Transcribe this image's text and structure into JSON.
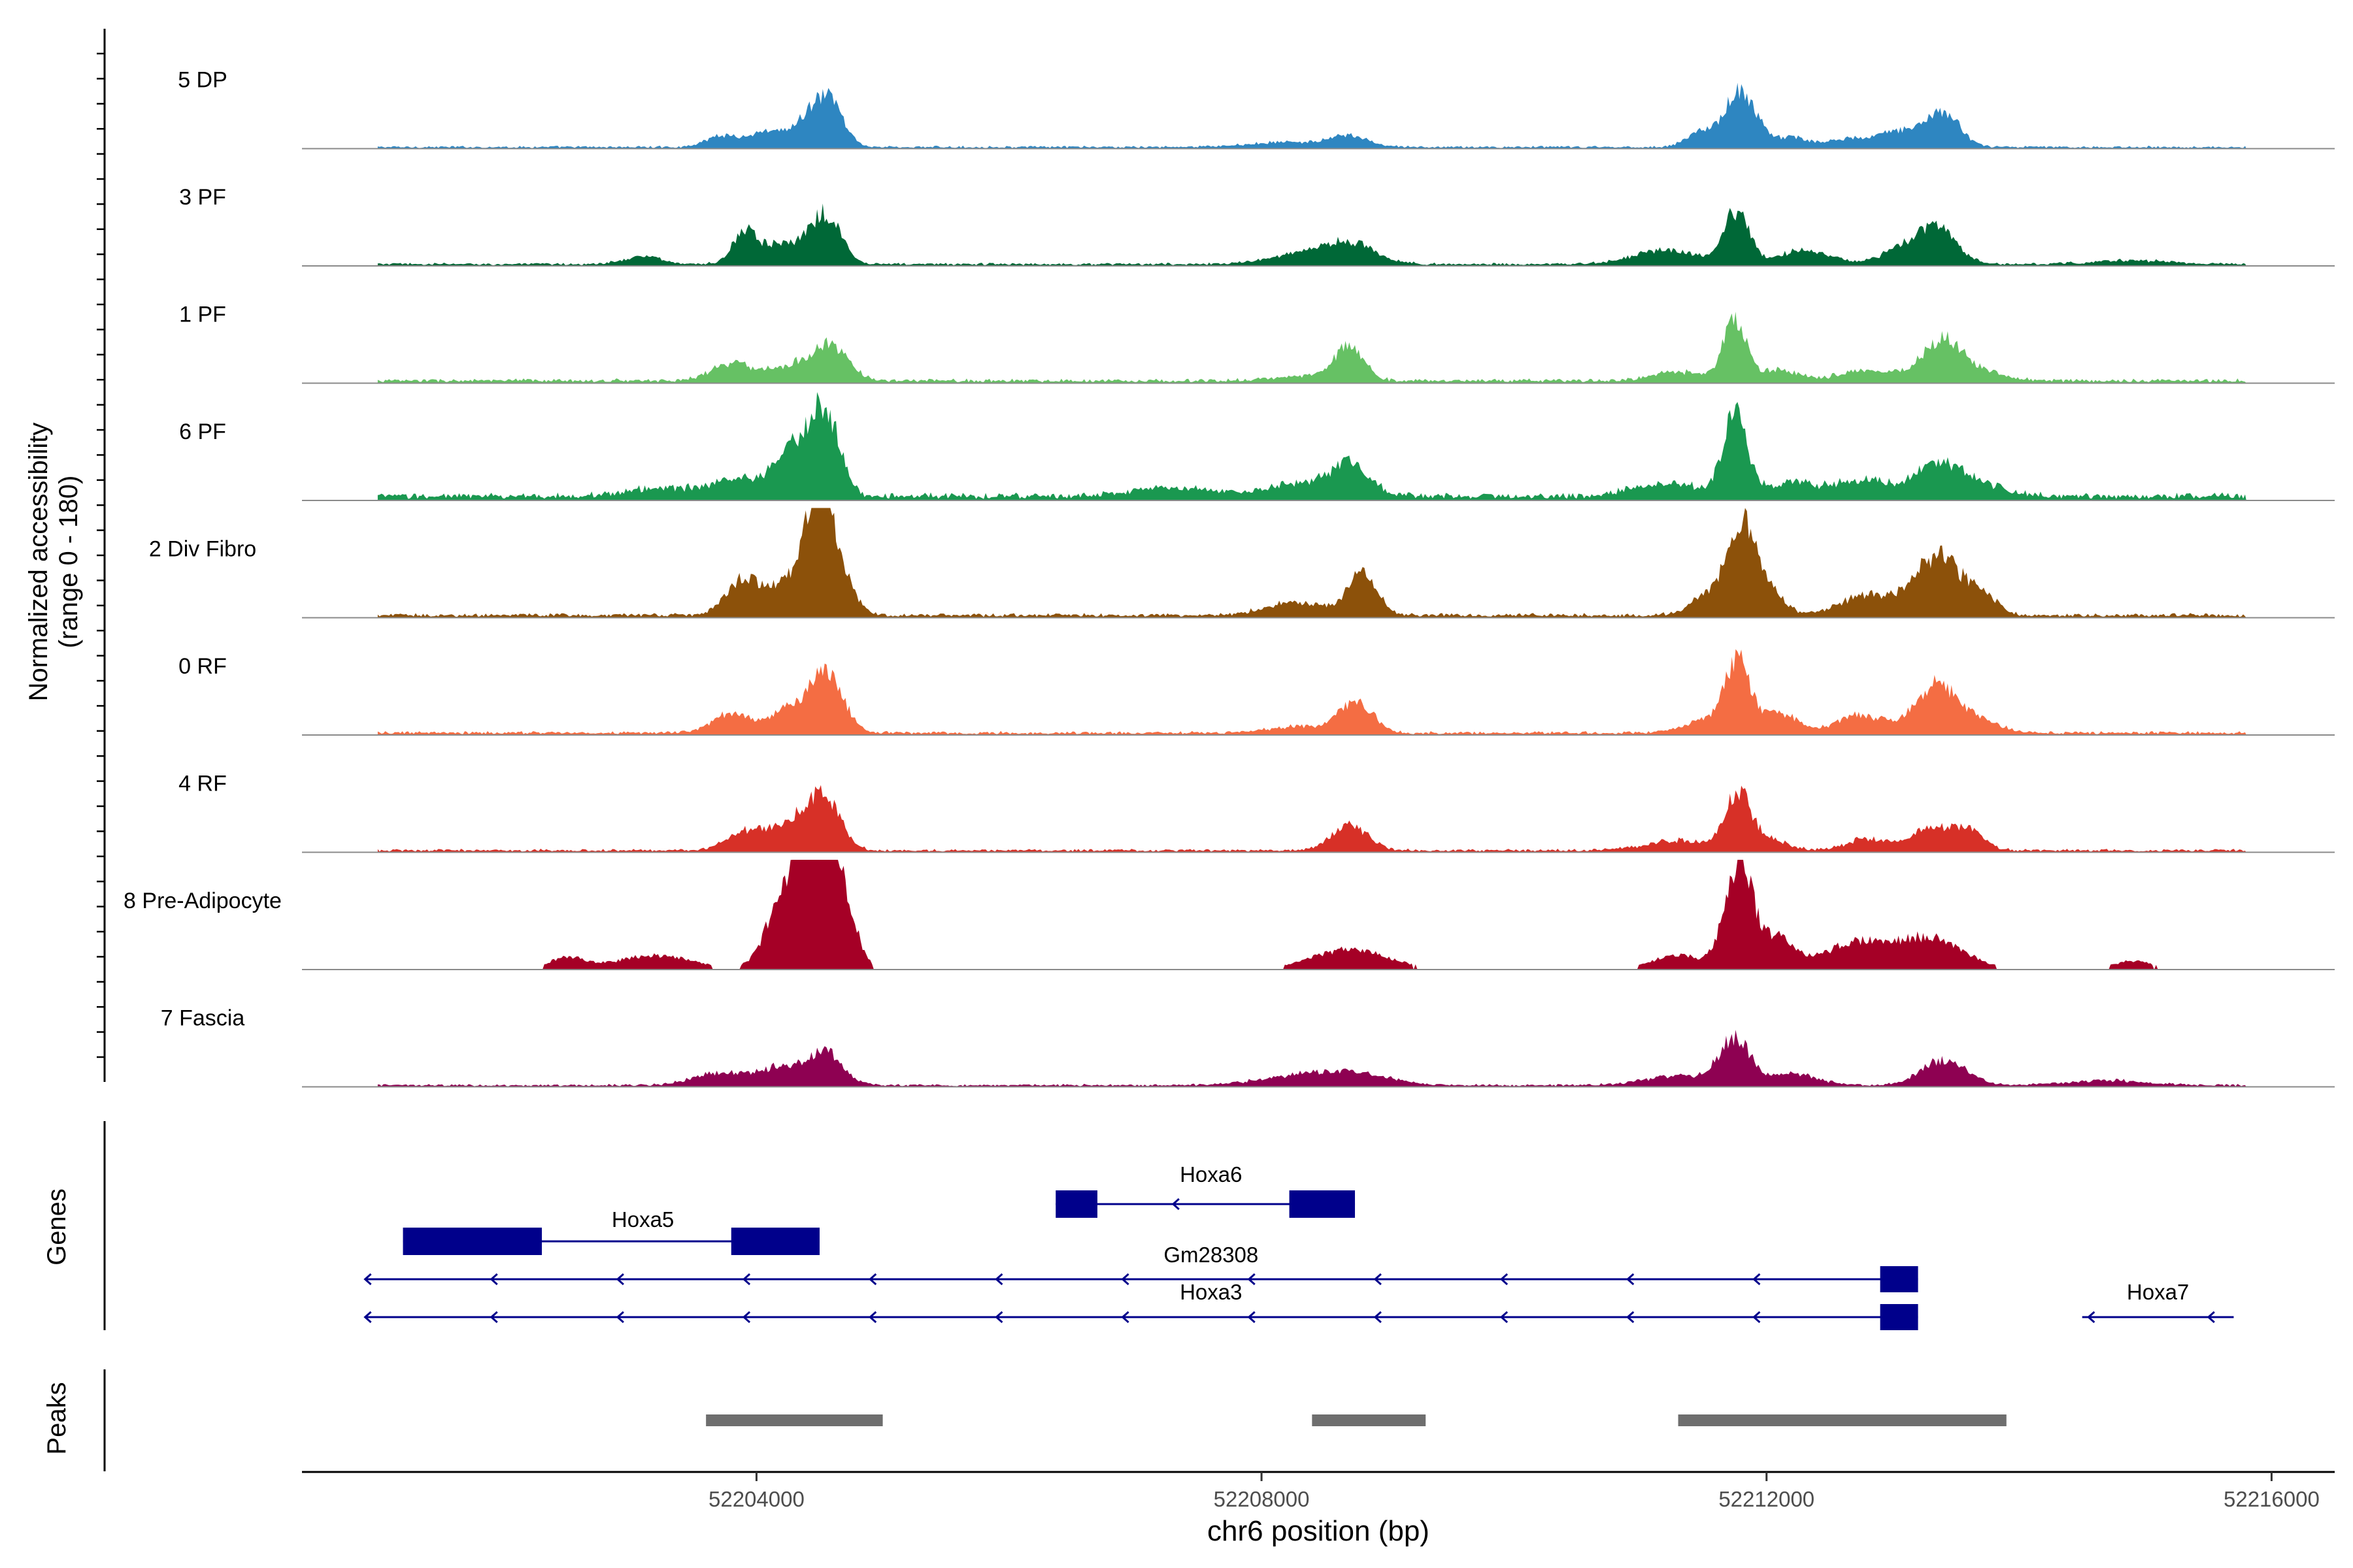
{
  "chart_data": {
    "type": "area",
    "title": "",
    "chromosome": "chr6",
    "xlabel": "chr6 position (bp)",
    "ylabel_line1": "Normalized accessibility",
    "ylabel_line2": "(range 0 - 180)",
    "xlim": [
      52200400,
      52216500
    ],
    "ylim": [
      0,
      180
    ],
    "x_ticks": [
      52204000,
      52208000,
      52212000,
      52216000
    ],
    "x_tick_labels": [
      "52204000",
      "52208000",
      "52212000",
      "52216000"
    ],
    "tracks": [
      {
        "name": "5 DP",
        "color": "#2E86C1",
        "height_scale": 0.75,
        "peaks": [
          [
            52203700,
            110,
            12
          ],
          [
            52204100,
            200,
            18
          ],
          [
            52204500,
            140,
            45
          ],
          [
            52204600,
            100,
            20
          ],
          [
            52208700,
            150,
            12
          ],
          [
            52208200,
            300,
            6
          ],
          [
            52211500,
            120,
            20
          ],
          [
            52211760,
            100,
            55
          ],
          [
            52211900,
            100,
            25
          ],
          [
            52212200,
            120,
            12
          ],
          [
            52213050,
            200,
            20
          ],
          [
            52213400,
            130,
            40
          ],
          [
            52212600,
            150,
            8
          ]
        ],
        "baseline": 2
      },
      {
        "name": "3 PF",
        "color": "#006837",
        "height_scale": 0.85,
        "peaks": [
          [
            52203100,
            150,
            8
          ],
          [
            52203900,
            90,
            28
          ],
          [
            52204200,
            200,
            22
          ],
          [
            52204550,
            120,
            50
          ],
          [
            52208700,
            200,
            22
          ],
          [
            52208300,
            250,
            10
          ],
          [
            52211200,
            250,
            15
          ],
          [
            52211760,
            100,
            55
          ],
          [
            52212300,
            200,
            15
          ],
          [
            52213350,
            150,
            38
          ],
          [
            52213050,
            150,
            15
          ],
          [
            52214900,
            300,
            4
          ]
        ],
        "baseline": 2
      },
      {
        "name": "1 PF",
        "color": "#66C164",
        "height_scale": 0.8,
        "peaks": [
          [
            52203800,
            160,
            20
          ],
          [
            52204300,
            180,
            18
          ],
          [
            52204600,
            130,
            38
          ],
          [
            52208700,
            110,
            38
          ],
          [
            52208400,
            250,
            6
          ],
          [
            52211300,
            200,
            10
          ],
          [
            52211750,
            90,
            70
          ],
          [
            52212100,
            150,
            12
          ],
          [
            52212800,
            220,
            12
          ],
          [
            52213400,
            160,
            45
          ],
          [
            52213700,
            200,
            8
          ]
        ],
        "baseline": 3
      },
      {
        "name": "6 PF",
        "color": "#1A9850",
        "height_scale": 1.0,
        "peaks": [
          [
            52203300,
            300,
            8
          ],
          [
            52203850,
            150,
            15
          ],
          [
            52204300,
            160,
            45
          ],
          [
            52204550,
            110,
            70
          ],
          [
            52208700,
            150,
            28
          ],
          [
            52208300,
            250,
            12
          ],
          [
            52207300,
            300,
            8
          ],
          [
            52211200,
            250,
            12
          ],
          [
            52211750,
            90,
            80
          ],
          [
            52212200,
            250,
            12
          ],
          [
            52212800,
            200,
            14
          ],
          [
            52213350,
            180,
            30
          ],
          [
            52213700,
            200,
            10
          ]
        ],
        "baseline": 4
      },
      {
        "name": "2 Div Fibro",
        "color": "#8C510A",
        "height_scale": 1.2,
        "peaks": [
          [
            52203900,
            140,
            28
          ],
          [
            52204300,
            150,
            30
          ],
          [
            52204500,
            90,
            90
          ],
          [
            52204650,
            120,
            30
          ],
          [
            52208800,
            110,
            32
          ],
          [
            52208300,
            250,
            10
          ],
          [
            52211550,
            150,
            15
          ],
          [
            52211800,
            110,
            65
          ],
          [
            52212000,
            120,
            20
          ],
          [
            52212800,
            220,
            15
          ],
          [
            52213350,
            180,
            45
          ],
          [
            52213700,
            120,
            15
          ]
        ],
        "baseline": 2
      },
      {
        "name": "0 RF",
        "color": "#F46D43",
        "height_scale": 1.0,
        "peaks": [
          [
            52203800,
            150,
            18
          ],
          [
            52204250,
            150,
            20
          ],
          [
            52204550,
            130,
            55
          ],
          [
            52208750,
            130,
            28
          ],
          [
            52208300,
            250,
            6
          ],
          [
            52211500,
            150,
            12
          ],
          [
            52211770,
            100,
            65
          ],
          [
            52212100,
            140,
            18
          ],
          [
            52212750,
            200,
            16
          ],
          [
            52213350,
            160,
            45
          ],
          [
            52213700,
            150,
            10
          ]
        ],
        "baseline": 2
      },
      {
        "name": "4 RF",
        "color": "#D73027",
        "height_scale": 0.9,
        "peaks": [
          [
            52203900,
            150,
            18
          ],
          [
            52204300,
            180,
            30
          ],
          [
            52204550,
            120,
            45
          ],
          [
            52208700,
            140,
            25
          ],
          [
            52211300,
            250,
            10
          ],
          [
            52211770,
            100,
            55
          ],
          [
            52212000,
            150,
            12
          ],
          [
            52212800,
            160,
            12
          ],
          [
            52213300,
            160,
            22
          ],
          [
            52213600,
            120,
            20
          ]
        ],
        "baseline": 2
      },
      {
        "name": "8 Pre-Adipocyte",
        "color": "#A50026",
        "height_scale": 1.3,
        "peaks": [
          [
            52202500,
            150,
            8
          ],
          [
            52203200,
            300,
            10
          ],
          [
            52204250,
            150,
            55
          ],
          [
            52204500,
            140,
            80
          ],
          [
            52204650,
            120,
            40
          ],
          [
            52208700,
            300,
            14
          ],
          [
            52211300,
            200,
            10
          ],
          [
            52211780,
            110,
            75
          ],
          [
            52212100,
            130,
            22
          ],
          [
            52212700,
            250,
            18
          ],
          [
            52213300,
            260,
            22
          ],
          [
            52214900,
            150,
            6
          ]
        ],
        "baseline": 0
      },
      {
        "name": "7 Fascia",
        "color": "#8E0152",
        "height_scale": 0.75,
        "peaks": [
          [
            52203700,
            200,
            15
          ],
          [
            52204200,
            180,
            22
          ],
          [
            52204550,
            130,
            40
          ],
          [
            52208700,
            300,
            15
          ],
          [
            52208200,
            300,
            8
          ],
          [
            52211300,
            250,
            12
          ],
          [
            52211750,
            120,
            55
          ],
          [
            52212200,
            200,
            14
          ],
          [
            52213400,
            180,
            30
          ],
          [
            52214700,
            300,
            6
          ]
        ],
        "baseline": 2
      }
    ],
    "genes_label": "Genes",
    "peaks_label": "Peaks",
    "gene_color": "#00008B",
    "peak_color": "#6E6E6E",
    "genes": [
      {
        "name": "Hoxa5",
        "start": 52201200,
        "end": 52204500,
        "strand": "-",
        "row": 1,
        "exons": [
          [
            52201200,
            52202300
          ],
          [
            52203800,
            52204500
          ]
        ],
        "arrows": false
      },
      {
        "name": "Hoxa6",
        "start": 52206370,
        "end": 52208740,
        "strand": "-",
        "row": 0,
        "exons": [
          [
            52206370,
            52206700
          ],
          [
            52208220,
            52208740
          ]
        ],
        "arrows": [
          52207300
        ]
      },
      {
        "name": "Gm28308",
        "start": 52200900,
        "end": 52213200,
        "strand": "-",
        "row": 2,
        "exons": [
          [
            52212900,
            52213200
          ]
        ],
        "arrows": "auto"
      },
      {
        "name": "Hoxa3",
        "start": 52200900,
        "end": 52213200,
        "strand": "-",
        "row": 3,
        "exons": [
          [
            52212900,
            52213200
          ]
        ],
        "arrows": "auto"
      },
      {
        "name": "Hoxa7",
        "start": 52214500,
        "end": 52215700,
        "strand": "-",
        "row": 3,
        "exons": [],
        "arrows": [
          52214550,
          52215500
        ]
      }
    ],
    "peaks": [
      {
        "start": 52203600,
        "end": 52205000
      },
      {
        "start": 52208400,
        "end": 52209300
      },
      {
        "start": 52211300,
        "end": 52213900
      }
    ]
  }
}
